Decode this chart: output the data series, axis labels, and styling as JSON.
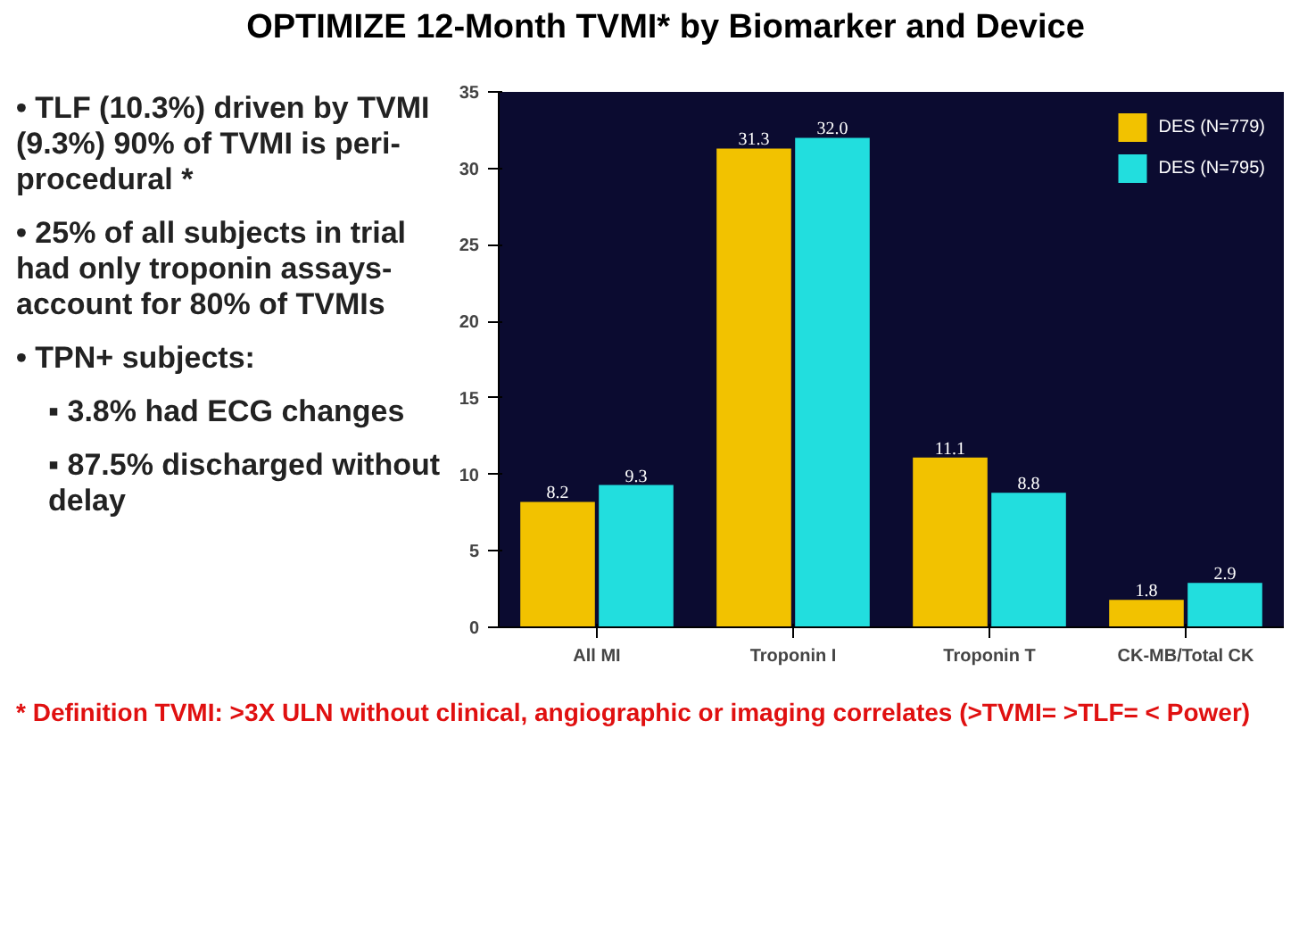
{
  "chart_data": {
    "type": "bar",
    "title": "OPTIMIZE 12-Month TVMI* by Biomarker and Device",
    "categories": [
      "All MI",
      "Troponin I",
      "Troponin T",
      "CK-MB/Total CK"
    ],
    "series": [
      {
        "name": "DES (N=779)",
        "color": "#f2c200",
        "values": [
          8.2,
          31.3,
          11.1,
          1.8
        ],
        "value_labels": [
          "8.2",
          "31.3",
          "11.1",
          "1.8"
        ]
      },
      {
        "name": "DES (N=795)",
        "color": "#22dede",
        "values": [
          9.3,
          32.0,
          8.8,
          2.9
        ],
        "value_labels": [
          "9.3",
          "32.0",
          "8.8",
          "2.9"
        ]
      }
    ],
    "ylim": [
      0,
      35
    ],
    "yticks": [
      0,
      5,
      10,
      15,
      20,
      25,
      30,
      35
    ],
    "grid": false,
    "legend": "top right",
    "annotations": [
      "• TLF (10.3%) driven by TVMI (9.3%) 90% of TVMI is peri-procedural *",
      "• 25% of all subjects in trial had only troponin assays- account for 80% of TVMIs",
      "• TPN+ subjects:",
      "▪ 3.8% had ECG changes",
      "▪ 87.5% discharged without delay",
      "* Definition TVMI: >3X ULN without clinical, angiographic or imaging correlates (>TVMI= >TLF= < Power)"
    ]
  }
}
